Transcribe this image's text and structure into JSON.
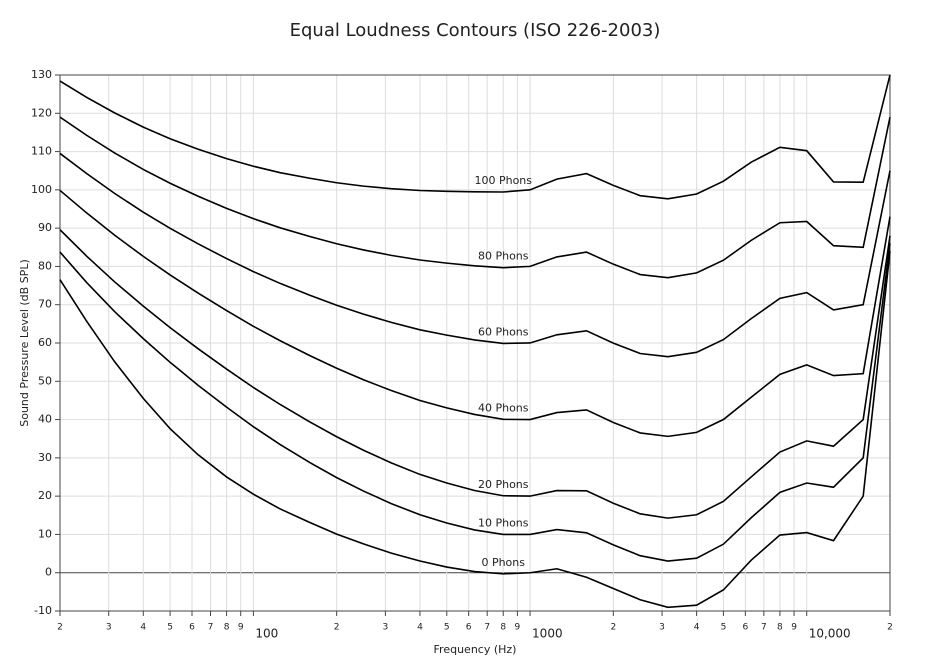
{
  "chart_data": {
    "type": "line",
    "title": "Equal Loudness Contours (ISO 226-2003)",
    "x_label": "Frequency (Hz)",
    "y_label": "Sound Pressure Level (dB SPL)",
    "x_scale": "log",
    "grid": true,
    "x": [
      20,
      25,
      31.5,
      40,
      50,
      63,
      80,
      100,
      125,
      160,
      200,
      250,
      315,
      400,
      500,
      630,
      800,
      1000,
      1250,
      1600,
      2000,
      2500,
      3150,
      4000,
      5000,
      6300,
      8000,
      10000,
      12500,
      16000,
      20000
    ],
    "xlim": [
      20,
      20000
    ],
    "ylim": [
      -10,
      130
    ],
    "yticks": [
      -10,
      0,
      10,
      20,
      30,
      40,
      50,
      60,
      70,
      80,
      90,
      100,
      110,
      120,
      130
    ],
    "xticks": [
      {
        "value": 20,
        "label": "2"
      },
      {
        "value": 30,
        "label": "3"
      },
      {
        "value": 40,
        "label": "4"
      },
      {
        "value": 50,
        "label": "5"
      },
      {
        "value": 60,
        "label": "6"
      },
      {
        "value": 70,
        "label": "7"
      },
      {
        "value": 80,
        "label": "8"
      },
      {
        "value": 90,
        "label": "9"
      },
      100,
      {
        "value": 200,
        "label": "2"
      },
      {
        "value": 300,
        "label": "3"
      },
      {
        "value": 400,
        "label": "4"
      },
      {
        "value": 500,
        "label": "5"
      },
      {
        "value": 600,
        "label": "6"
      },
      {
        "value": 700,
        "label": "7"
      },
      {
        "value": 800,
        "label": "8"
      },
      {
        "value": 900,
        "label": "9"
      },
      1000,
      {
        "value": 2000,
        "label": "2"
      },
      {
        "value": 3000,
        "label": "3"
      },
      {
        "value": 4000,
        "label": "4"
      },
      {
        "value": 5000,
        "label": "5"
      },
      {
        "value": 6000,
        "label": "6"
      },
      {
        "value": 7000,
        "label": "7"
      },
      {
        "value": 8000,
        "label": "8"
      },
      {
        "value": 9000,
        "label": "9"
      },
      {
        "value": 10000,
        "label": "10,000"
      },
      {
        "value": 20000,
        "label": "2"
      }
    ],
    "series": [
      {
        "name": "0 Phons",
        "color": "#000000",
        "values": [
          76.55,
          65.62,
          55.12,
          45.53,
          37.63,
          30.86,
          25.02,
          20.51,
          16.65,
          13.12,
          10.09,
          7.54,
          5.11,
          3.06,
          1.48,
          0.3,
          -0.3,
          -0.01,
          1.03,
          -1.19,
          -4.11,
          -7.05,
          -9.03,
          -8.49,
          -4.48,
          3.28,
          9.83,
          10.48,
          8.38,
          20,
          84
        ]
      },
      {
        "name": "10 Phons",
        "color": "#000000",
        "values": [
          83.75,
          75.76,
          68.21,
          61.14,
          54.96,
          49.01,
          43.24,
          38.13,
          33.48,
          28.77,
          24.84,
          21.33,
          18.05,
          15.14,
          12.98,
          11.18,
          9.99,
          10.0,
          11.26,
          10.43,
          7.27,
          4.45,
          3.04,
          3.8,
          7.46,
          14.35,
          20.98,
          23.43,
          22.33,
          30,
          86
        ]
      },
      {
        "name": "20 Phons",
        "color": "#000000",
        "values": [
          89.58,
          82.65,
          75.98,
          69.62,
          64.02,
          58.55,
          53.19,
          48.38,
          43.94,
          39.37,
          35.51,
          31.99,
          28.69,
          25.67,
          23.43,
          21.48,
          20.1,
          20.01,
          21.46,
          21.4,
          18.15,
          15.38,
          14.26,
          15.14,
          18.63,
          25.02,
          31.52,
          34.43,
          33.04,
          40,
          88
        ]
      },
      {
        "name": "40 Phons",
        "color": "#000000",
        "values": [
          99.85,
          93.94,
          88.17,
          82.63,
          77.78,
          73.08,
          68.48,
          64.37,
          60.59,
          56.7,
          53.41,
          50.4,
          47.58,
          44.98,
          43.05,
          41.34,
          40.06,
          40.01,
          41.82,
          42.51,
          39.23,
          36.51,
          35.61,
          36.65,
          40.01,
          45.83,
          51.8,
          54.28,
          51.49,
          52,
          93
        ]
      },
      {
        "name": "60 Phons",
        "color": "#000000",
        "values": [
          109.51,
          104.23,
          99.08,
          94.18,
          89.96,
          85.94,
          82.05,
          78.65,
          75.56,
          72.47,
          69.86,
          67.53,
          65.39,
          63.45,
          62.05,
          60.81,
          59.89,
          60.01,
          62.15,
          63.19,
          59.96,
          57.26,
          56.42,
          57.57,
          60.89,
          66.36,
          71.66,
          73.16,
          68.63,
          70,
          105
        ]
      },
      {
        "name": "80 Phons",
        "color": "#000000",
        "values": [
          118.99,
          114.23,
          109.65,
          105.34,
          101.72,
          98.36,
          95.17,
          92.48,
          90.09,
          87.82,
          85.92,
          84.31,
          82.89,
          81.68,
          80.86,
          80.17,
          79.67,
          80.01,
          82.48,
          83.74,
          80.59,
          77.88,
          77.07,
          78.31,
          81.62,
          86.81,
          91.41,
          91.74,
          85.41,
          85,
          119
        ]
      },
      {
        "name": "100 Phons",
        "color": "#000000",
        "values": [
          128.41,
          124.15,
          120.11,
          116.38,
          113.35,
          110.65,
          108.16,
          106.17,
          104.48,
          103.03,
          101.85,
          100.97,
          100.3,
          99.83,
          99.62,
          99.5,
          99.44,
          100.01,
          102.81,
          104.25,
          101.18,
          98.48,
          97.67,
          98.92,
          102.26,
          107.23,
          111.11,
          110.23,
          102.07,
          102,
          130
        ]
      }
    ]
  }
}
